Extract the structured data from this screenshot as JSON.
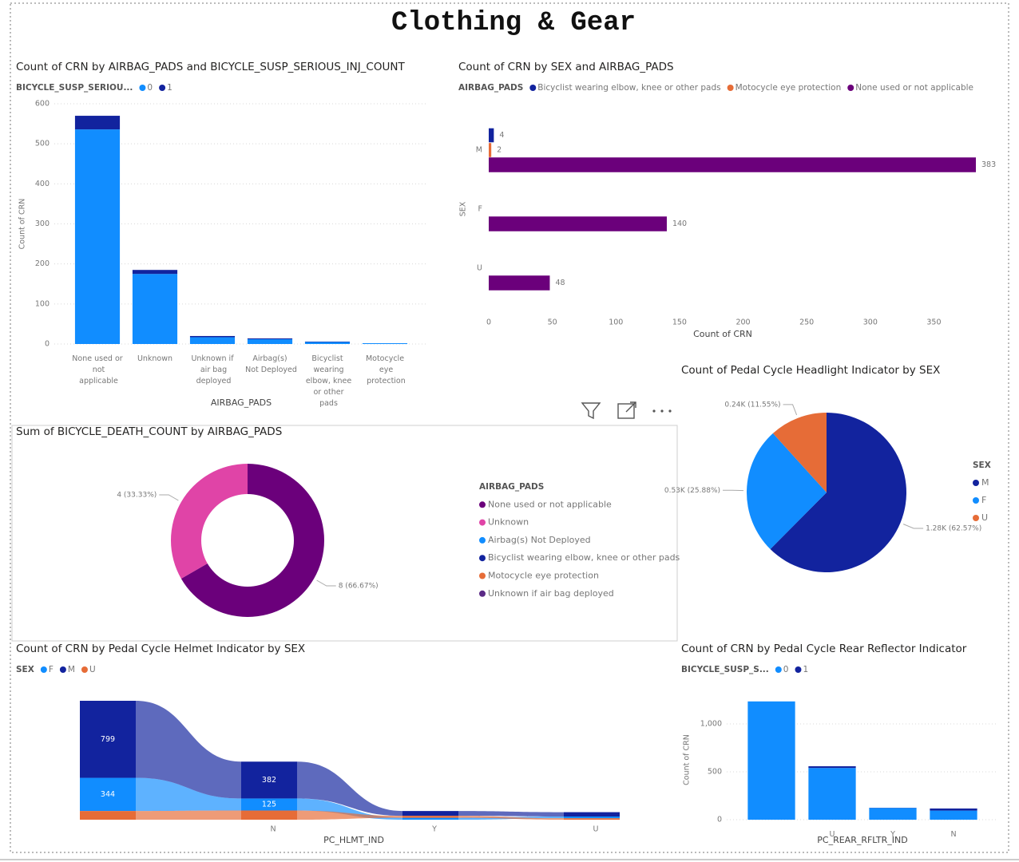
{
  "title": "Clothing & Gear",
  "chart_data": [
    {
      "type": "bar",
      "stacked": true,
      "title": "Count of CRN by AIRBAG_PADS and BICYCLE_SUSP_SERIOUS_INJ_COUNT",
      "legend_title": "BICYCLE_SUSP_SERIOU...",
      "x_label": "AIRBAG_PADS",
      "y_label": "Count of CRN",
      "categories": [
        "None used or not applicable",
        "Unknown",
        "Unknown if air bag deployed",
        "Airbag(s) Not Deployed",
        "Bicyclist wearing elbow, knee or other pads",
        "Motocycle eye protection"
      ],
      "series": [
        {
          "name": "0",
          "color": "#118dff",
          "values": [
            536,
            175,
            17,
            12,
            5,
            2
          ]
        },
        {
          "name": "1",
          "color": "#12239e",
          "values": [
            34,
            10,
            3,
            2,
            1,
            0
          ]
        }
      ],
      "ylim": [
        0,
        600
      ],
      "yticks": [
        0,
        100,
        200,
        300,
        400,
        500,
        600
      ],
      "grid": true
    },
    {
      "type": "hbar",
      "title": "Count of CRN by SEX and AIRBAG_PADS",
      "legend_title": "AIRBAG_PADS",
      "x_label": "Count of CRN",
      "y_label": "SEX",
      "categories": [
        "M",
        "F",
        "U"
      ],
      "series": [
        {
          "name": "Bicyclist wearing elbow, knee or other pads",
          "color": "#12239e",
          "values": [
            4,
            null,
            null
          ]
        },
        {
          "name": "Motocycle eye protection",
          "color": "#e66c37",
          "values": [
            2,
            null,
            null
          ]
        },
        {
          "name": "None used or not applicable",
          "color": "#6b007b",
          "values": [
            383,
            140,
            48
          ]
        }
      ],
      "xlim": [
        0,
        383
      ],
      "xticks": [
        0,
        50,
        100,
        150,
        200,
        250,
        300,
        350
      ],
      "grid": false
    },
    {
      "type": "pie",
      "title": "Count of Pedal Cycle Headlight Indicator by SEX",
      "legend_title": "SEX",
      "categories": [
        "M",
        "F",
        "U"
      ],
      "values": [
        1280,
        530,
        240
      ],
      "value_labels": [
        "1.28K (62.57%)",
        "0.53K (25.88%)",
        "0.24K (11.55%)"
      ],
      "colors": [
        "#12239e",
        "#118dff",
        "#e66c37"
      ]
    },
    {
      "type": "donut",
      "title": "Sum of BICYCLE_DEATH_COUNT by AIRBAG_PADS",
      "legend_title": "AIRBAG_PADS",
      "categories": [
        "None used or not applicable",
        "Unknown",
        "Airbag(s) Not Deployed",
        "Bicyclist wearing elbow, knee or other pads",
        "Motocycle eye protection",
        "Unknown if air bag deployed"
      ],
      "values": [
        8,
        4,
        0,
        0,
        0,
        0
      ],
      "value_labels": [
        "8 (66.67%)",
        "4 (33.33%)",
        null,
        null,
        null,
        null
      ],
      "colors": [
        "#6b007b",
        "#e044a7",
        "#118dff",
        "#12239e",
        "#e66c37",
        "#5b2a86"
      ]
    },
    {
      "type": "ribbon",
      "title": "Count of CRN by Pedal Cycle Helmet Indicator by SEX",
      "legend_title": "SEX",
      "x_label": "PC_HLMT_IND",
      "categories": [
        null,
        "N",
        "Y",
        "U"
      ],
      "series": [
        {
          "name": "F",
          "color": "#118dff",
          "values": [
            344,
            125,
            20,
            18
          ]
        },
        {
          "name": "M",
          "color": "#12239e",
          "values": [
            799,
            382,
            50,
            45
          ]
        },
        {
          "name": "U",
          "color": "#e66c37",
          "values": [
            90,
            95,
            20,
            15
          ]
        }
      ]
    },
    {
      "type": "bar",
      "stacked": true,
      "title": "Count of CRN by Pedal Cycle Rear Reflector Indicator",
      "legend_title": "BICYCLE_SUSP_S...",
      "x_label": "PC_REAR_RFLTR_IND",
      "y_label": "Count of CRN",
      "categories": [
        null,
        "U",
        "Y",
        "N"
      ],
      "series": [
        {
          "name": "0",
          "color": "#118dff",
          "values": [
            1235,
            540,
            123,
            95
          ]
        },
        {
          "name": "1",
          "color": "#12239e",
          "values": [
            0,
            18,
            2,
            22
          ]
        }
      ],
      "ylim": [
        0,
        1250
      ],
      "yticks": [
        0,
        500,
        {
          "value": 1000,
          "label": "1,000"
        }
      ],
      "grid": true
    }
  ]
}
